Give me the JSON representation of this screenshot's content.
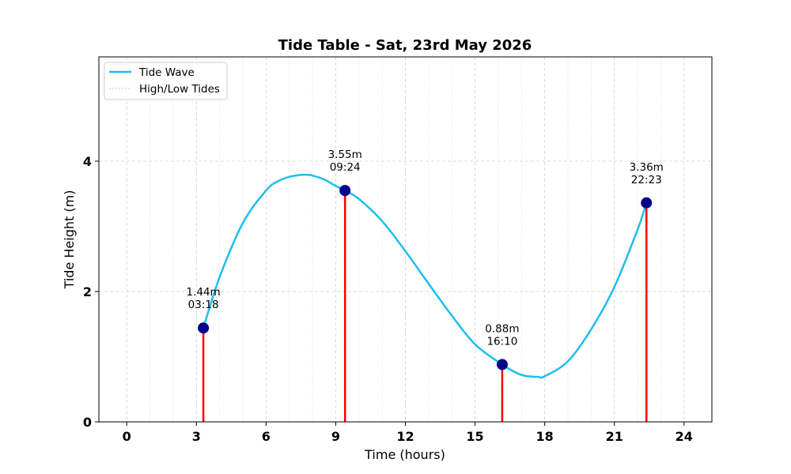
{
  "chart_data": {
    "type": "line",
    "title": "Tide Table - Sat, 23rd May 2026",
    "xlabel": "Time (hours)",
    "ylabel": "Tide Height (m)",
    "xlim": [
      -1.2,
      25.2
    ],
    "ylim": [
      0,
      5.6
    ],
    "xticks": [
      0,
      3,
      6,
      9,
      12,
      15,
      18,
      21,
      24
    ],
    "yticks": [
      0,
      2,
      4
    ],
    "grid": true,
    "legend_position": "top-left",
    "series": [
      {
        "name": "Tide Wave",
        "color": "#1ebef0",
        "x": [
          3.3,
          4.0,
          5.0,
          6.0,
          6.5,
          7.0,
          7.5,
          7.8,
          8.0,
          8.5,
          9.0,
          9.4,
          10.0,
          11.0,
          12.0,
          13.0,
          14.0,
          15.0,
          16.17,
          17.0,
          17.7,
          18.0,
          19.0,
          20.0,
          21.0,
          22.0,
          22.38
        ],
        "y": [
          1.44,
          2.22,
          3.05,
          3.55,
          3.69,
          3.76,
          3.79,
          3.79,
          3.78,
          3.72,
          3.62,
          3.55,
          3.42,
          3.08,
          2.62,
          2.12,
          1.63,
          1.19,
          0.88,
          0.72,
          0.69,
          0.7,
          0.93,
          1.42,
          2.07,
          2.95,
          3.36
        ]
      }
    ],
    "extremes_label": "High/Low Tides",
    "extremes_color": "#ff0000",
    "marker_color": "#00008b",
    "extremes": [
      {
        "x": 3.3,
        "y": 1.44,
        "height_label": "1.44m",
        "time_label": "03:18"
      },
      {
        "x": 9.4,
        "y": 3.55,
        "height_label": "3.55m",
        "time_label": "09:24"
      },
      {
        "x": 16.17,
        "y": 0.88,
        "height_label": "0.88m",
        "time_label": "16:10"
      },
      {
        "x": 22.38,
        "y": 3.36,
        "height_label": "3.36m",
        "time_label": "22:23"
      }
    ]
  }
}
